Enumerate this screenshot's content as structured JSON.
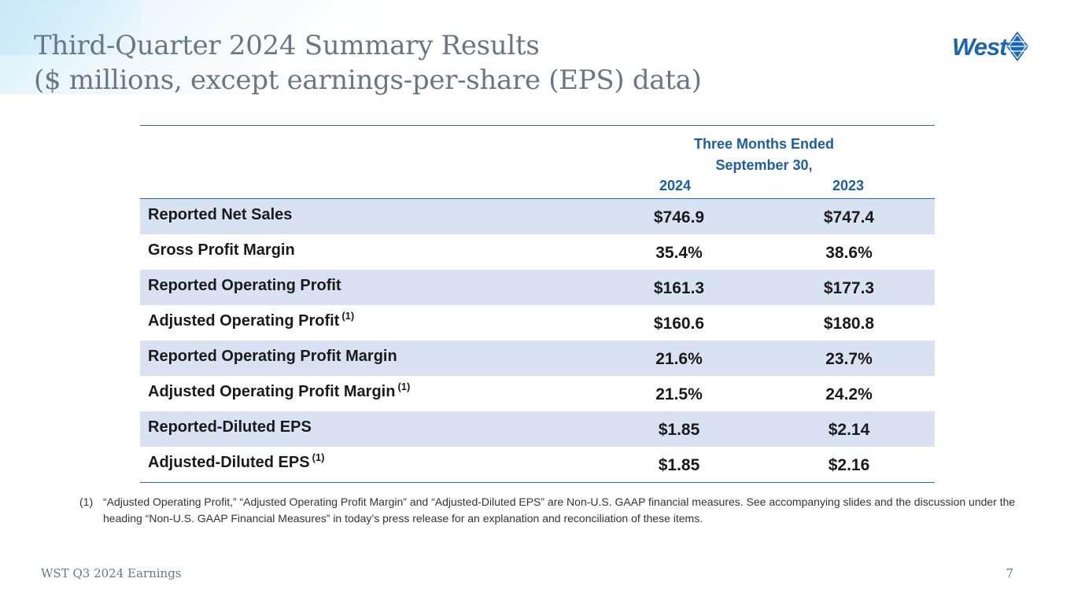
{
  "title": {
    "line1": "Third-Quarter 2024 Summary Results",
    "line2": "($ millions, except earnings-per-share (EPS) data)"
  },
  "logo": {
    "text": "West",
    "icon": "west-diamond-logo-icon",
    "color": "#1b65b5"
  },
  "table": {
    "header_line1": "Three Months Ended",
    "header_line2": "September 30,",
    "columns": [
      "2024",
      "2023"
    ],
    "rows": [
      {
        "label": "Reported Net Sales",
        "note": "",
        "v2024": "$746.9",
        "v2023": "$747.4"
      },
      {
        "label": "Gross Profit Margin",
        "note": "",
        "v2024": "35.4%",
        "v2023": "38.6%"
      },
      {
        "label": "Reported Operating Profit",
        "note": "",
        "v2024": "$161.3",
        "v2023": "$177.3"
      },
      {
        "label": "Adjusted Operating Profit",
        "note": "(1)",
        "v2024": "$160.6",
        "v2023": "$180.8"
      },
      {
        "label": "Reported Operating Profit Margin",
        "note": "",
        "v2024": "21.6%",
        "v2023": "23.7%"
      },
      {
        "label": "Adjusted Operating Profit Margin",
        "note": "(1)",
        "v2024": "21.5%",
        "v2023": "24.2%"
      },
      {
        "label": "Reported-Diluted EPS",
        "note": "",
        "v2024": "$1.85",
        "v2023": "$2.14"
      },
      {
        "label": "Adjusted-Diluted EPS",
        "note": "(1)",
        "v2024": "$1.85",
        "v2023": "$2.16"
      }
    ],
    "accent_color": "#1b5ea8",
    "shade_color": "#d9e2f3"
  },
  "footnote": {
    "marker": "(1)",
    "text": "“Adjusted Operating Profit,” “Adjusted Operating Profit Margin” and “Adjusted-Diluted EPS” are Non-U.S. GAAP financial measures. See accompanying slides and the discussion under the heading “Non-U.S. GAAP Financial Measures” in today’s press release for an explanation and reconciliation of these items."
  },
  "footer": {
    "left": "WST Q3 2024 Earnings",
    "page": "7"
  }
}
